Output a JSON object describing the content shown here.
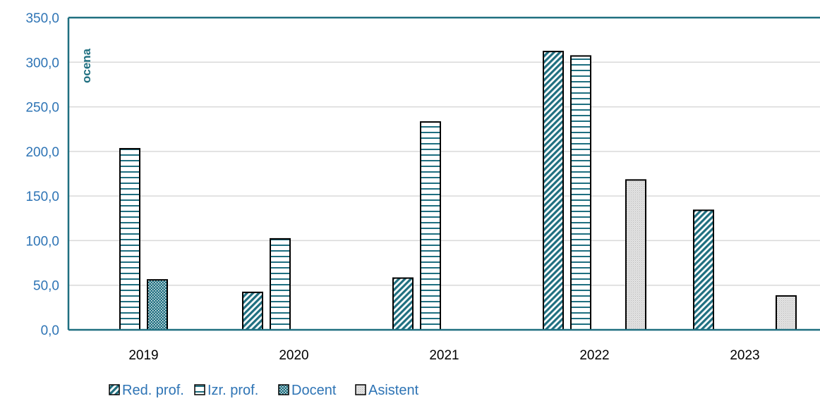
{
  "chart_data": {
    "type": "bar",
    "title": "",
    "ylabel": "ocena",
    "xlabel": "",
    "ylim": [
      0,
      350
    ],
    "yticks": [
      "0,0",
      "50,0",
      "100,0",
      "150,0",
      "200,0",
      "250,0",
      "300,0",
      "350,0"
    ],
    "grid": true,
    "legend_position": "bottom",
    "categories": [
      "2019",
      "2020",
      "2021",
      "2022",
      "2023"
    ],
    "series": [
      {
        "name": "Red. prof.",
        "pattern": "diagonal",
        "values": [
          0,
          42,
          58,
          312,
          134
        ]
      },
      {
        "name": "Izr. prof.",
        "pattern": "horizontal",
        "values": [
          203,
          102,
          233,
          307,
          0
        ]
      },
      {
        "name": "Docent",
        "pattern": "dots",
        "values": [
          56,
          0,
          0,
          0,
          0
        ]
      },
      {
        "name": "Asistent",
        "pattern": "grey",
        "values": [
          0,
          0,
          0,
          168,
          38
        ]
      }
    ],
    "colors": {
      "teal": "#1f6f80",
      "axis_text": "#2e74b5",
      "grid": "#d9d9d9",
      "grey_fill": "#d9d9d9"
    }
  }
}
